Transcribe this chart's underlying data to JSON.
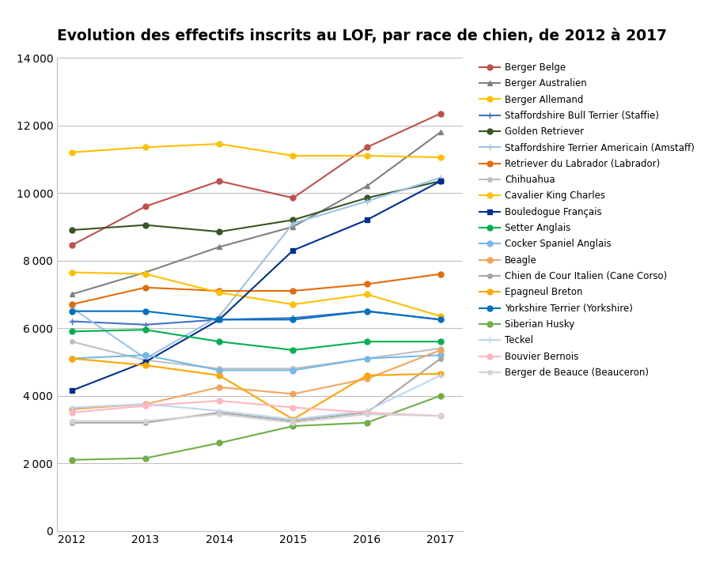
{
  "title": "Evolution des effectifs inscrits au LOF, par race de chien, de 2012 à 2017",
  "years": [
    2012,
    2013,
    2014,
    2015,
    2016,
    2017
  ],
  "series": [
    {
      "name": "Berger Belge",
      "color": "#C0504D",
      "marker": "o",
      "markersize": 5,
      "values": [
        8450,
        9600,
        10350,
        9850,
        11350,
        12350
      ]
    },
    {
      "name": "Berger Australien",
      "color": "#808080",
      "marker": "^",
      "markersize": 5,
      "values": [
        7000,
        7650,
        8400,
        9000,
        10200,
        11800
      ]
    },
    {
      "name": "Berger Allemand",
      "color": "#FFC000",
      "marker": "o",
      "markersize": 5,
      "values": [
        11200,
        11350,
        11450,
        11100,
        11100,
        11050
      ]
    },
    {
      "name": "Staffordshire Bull Terrier (Staffie)",
      "color": "#4472C4",
      "marker": "+",
      "markersize": 6,
      "values": [
        6200,
        6100,
        6250,
        6300,
        6500,
        6250
      ]
    },
    {
      "name": "Golden Retriever",
      "color": "#375623",
      "marker": "o",
      "markersize": 5,
      "values": [
        8900,
        9050,
        8850,
        9200,
        9850,
        10350
      ]
    },
    {
      "name": "Staffordshire Terrier Americain (Amstaff)",
      "color": "#9DC3E6",
      "marker": "+",
      "markersize": 6,
      "values": [
        6600,
        5100,
        6350,
        9100,
        9750,
        10450
      ]
    },
    {
      "name": "Retriever du Labrador (Labrador)",
      "color": "#E36C09",
      "marker": "o",
      "markersize": 5,
      "values": [
        6700,
        7200,
        7100,
        7100,
        7300,
        7600
      ]
    },
    {
      "name": "Chihuahua",
      "color": "#BFBFBF",
      "marker": "o",
      "markersize": 4,
      "values": [
        5600,
        5050,
        4800,
        4800,
        5100,
        5400
      ]
    },
    {
      "name": "Cavalier King Charles",
      "color": "#FFC000",
      "marker": "o",
      "markersize": 5,
      "values": [
        7650,
        7600,
        7050,
        6700,
        7000,
        6350
      ]
    },
    {
      "name": "Bouledogue Français",
      "color": "#00308F",
      "marker": "s",
      "markersize": 5,
      "values": [
        4150,
        5000,
        6250,
        8300,
        9200,
        10350
      ]
    },
    {
      "name": "Setter Anglais",
      "color": "#00B050",
      "marker": "o",
      "markersize": 5,
      "values": [
        5900,
        5950,
        5600,
        5350,
        5600,
        5600
      ]
    },
    {
      "name": "Cocker Spaniel Anglais",
      "color": "#74B9E7",
      "marker": "o",
      "markersize": 5,
      "values": [
        5100,
        5200,
        4750,
        4750,
        5100,
        5200
      ]
    },
    {
      "name": "Beagle",
      "color": "#F4A460",
      "marker": "o",
      "markersize": 5,
      "values": [
        3600,
        3750,
        4250,
        4050,
        4500,
        5350
      ]
    },
    {
      "name": "Chien de Cour Italien (Cane Corso)",
      "color": "#A6A6A6",
      "marker": "o",
      "markersize": 4,
      "values": [
        3200,
        3200,
        3500,
        3250,
        3500,
        5100
      ]
    },
    {
      "name": "Epagneul Breton",
      "color": "#FFA500",
      "marker": "o",
      "markersize": 5,
      "values": [
        5100,
        4900,
        4600,
        3300,
        4600,
        4650
      ]
    },
    {
      "name": "Yorkshire Terrier (Yorkshire)",
      "color": "#0070C0",
      "marker": "o",
      "markersize": 5,
      "values": [
        6500,
        6500,
        6250,
        6250,
        6500,
        6250
      ]
    },
    {
      "name": "Siberian Husky",
      "color": "#70AD47",
      "marker": "o",
      "markersize": 5,
      "values": [
        2100,
        2150,
        2600,
        3100,
        3200,
        4000
      ]
    },
    {
      "name": "Teckel",
      "color": "#BDD7EE",
      "marker": "+",
      "markersize": 6,
      "values": [
        3650,
        3750,
        3550,
        3300,
        3550,
        4600
      ]
    },
    {
      "name": "Bouvier Bernois",
      "color": "#FFB6C1",
      "marker": "o",
      "markersize": 5,
      "values": [
        3500,
        3700,
        3850,
        3650,
        3500,
        3400
      ]
    },
    {
      "name": "Berger de Beauce (Beauceron)",
      "color": "#D3D3D3",
      "marker": "o",
      "markersize": 4,
      "values": [
        3250,
        3250,
        3450,
        3200,
        3450,
        3400
      ]
    }
  ],
  "ylim": [
    0,
    14000
  ],
  "yticks": [
    0,
    2000,
    4000,
    6000,
    8000,
    10000,
    12000,
    14000
  ],
  "background_color": "#FFFFFF",
  "grid_color": "#BFBFBF",
  "title_fontsize": 13.5,
  "tick_fontsize": 10,
  "legend_fontsize": 8.5
}
